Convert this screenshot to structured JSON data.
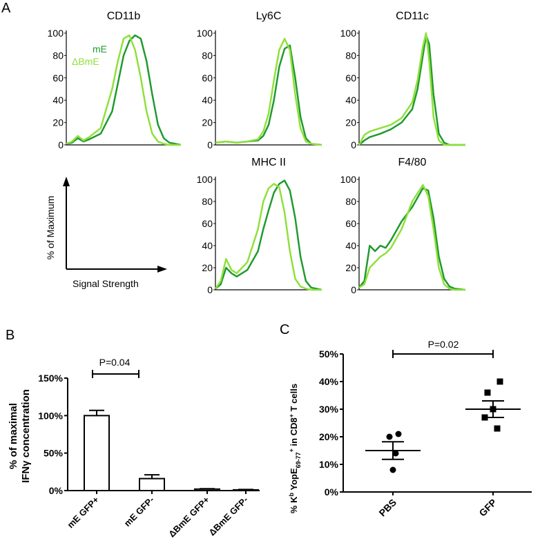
{
  "panel_labels": {
    "a": "A",
    "b": "B",
    "c": "C"
  },
  "colors": {
    "mE": "#1f9a2e",
    "dBmE": "#8fe03a"
  },
  "histograms": {
    "series_names": {
      "mE": "mE",
      "dBmE": "ΔBmE"
    },
    "y_ticks": [
      "0",
      "20",
      "40",
      "60",
      "80",
      "100"
    ],
    "axis_cartoon": {
      "ylabel": "% of Maximum",
      "xlabel": "Signal Strength"
    }
  },
  "chart_data": [
    {
      "type": "line",
      "panel": "A",
      "title": "CD11b",
      "legend": [
        "mE",
        "ΔBmE"
      ],
      "ylim": [
        0,
        100
      ],
      "series": [
        {
          "name": "mE",
          "x": [
            0,
            0.05,
            0.1,
            0.15,
            0.2,
            0.3,
            0.4,
            0.45,
            0.5,
            0.55,
            0.6,
            0.65,
            0.7,
            0.75,
            0.8,
            0.85,
            0.9,
            0.95,
            1.0
          ],
          "values": [
            1,
            2,
            6,
            3,
            5,
            10,
            30,
            55,
            80,
            93,
            98,
            95,
            75,
            45,
            18,
            6,
            2,
            1,
            0
          ]
        },
        {
          "name": "ΔBmE",
          "x": [
            0,
            0.05,
            0.1,
            0.15,
            0.2,
            0.3,
            0.4,
            0.45,
            0.5,
            0.55,
            0.6,
            0.65,
            0.7,
            0.75,
            0.8,
            0.85,
            0.9,
            0.95,
            1.0
          ],
          "values": [
            1,
            3,
            8,
            4,
            7,
            15,
            50,
            75,
            95,
            98,
            85,
            60,
            30,
            10,
            3,
            1,
            0,
            0,
            0
          ]
        }
      ]
    },
    {
      "type": "line",
      "panel": "A",
      "title": "Ly6C",
      "ylim": [
        0,
        100
      ],
      "series": [
        {
          "name": "mE",
          "x": [
            0,
            0.1,
            0.2,
            0.3,
            0.4,
            0.45,
            0.5,
            0.55,
            0.6,
            0.65,
            0.7,
            0.75,
            0.8,
            0.85,
            0.9,
            1.0
          ],
          "values": [
            2,
            3,
            2,
            3,
            4,
            8,
            18,
            40,
            70,
            86,
            89,
            60,
            25,
            6,
            1,
            0
          ]
        },
        {
          "name": "ΔBmE",
          "x": [
            0,
            0.1,
            0.2,
            0.3,
            0.4,
            0.45,
            0.5,
            0.55,
            0.6,
            0.65,
            0.7,
            0.75,
            0.8,
            0.85,
            0.9,
            1.0
          ],
          "values": [
            2,
            3,
            2,
            3,
            5,
            12,
            28,
            58,
            85,
            95,
            85,
            45,
            15,
            3,
            1,
            0
          ]
        }
      ]
    },
    {
      "type": "line",
      "panel": "A",
      "title": "CD11c",
      "ylim": [
        0,
        100
      ],
      "series": [
        {
          "name": "mE",
          "x": [
            0,
            0.05,
            0.1,
            0.2,
            0.3,
            0.4,
            0.5,
            0.55,
            0.6,
            0.63,
            0.66,
            0.7,
            0.75,
            0.8,
            0.85,
            1.0
          ],
          "values": [
            0,
            4,
            7,
            10,
            14,
            20,
            32,
            50,
            80,
            98,
            90,
            45,
            10,
            2,
            0,
            0
          ]
        },
        {
          "name": "ΔBmE",
          "x": [
            0,
            0.05,
            0.1,
            0.2,
            0.3,
            0.4,
            0.5,
            0.55,
            0.6,
            0.63,
            0.66,
            0.7,
            0.75,
            0.8,
            0.85,
            1.0
          ],
          "values": [
            0,
            9,
            12,
            15,
            18,
            24,
            38,
            58,
            88,
            100,
            75,
            25,
            4,
            0,
            0,
            0
          ]
        }
      ]
    },
    {
      "type": "line",
      "panel": "A",
      "title": "MHC II",
      "ylim": [
        0,
        100
      ],
      "series": [
        {
          "name": "mE",
          "x": [
            0,
            0.05,
            0.1,
            0.15,
            0.2,
            0.3,
            0.4,
            0.45,
            0.5,
            0.55,
            0.6,
            0.65,
            0.7,
            0.75,
            0.8,
            0.85,
            0.9,
            1.0
          ],
          "values": [
            1,
            5,
            20,
            15,
            12,
            18,
            35,
            55,
            72,
            88,
            96,
            99,
            90,
            65,
            30,
            8,
            2,
            0
          ]
        },
        {
          "name": "ΔBmE",
          "x": [
            0,
            0.05,
            0.1,
            0.15,
            0.2,
            0.3,
            0.4,
            0.45,
            0.5,
            0.55,
            0.6,
            0.65,
            0.7,
            0.75,
            0.8,
            0.85,
            0.9,
            1.0
          ],
          "values": [
            1,
            8,
            28,
            18,
            15,
            25,
            55,
            80,
            92,
            96,
            93,
            70,
            35,
            10,
            3,
            1,
            0,
            0
          ]
        }
      ]
    },
    {
      "type": "line",
      "panel": "A",
      "title": "F4/80",
      "ylim": [
        0,
        100
      ],
      "series": [
        {
          "name": "mE",
          "x": [
            0,
            0.05,
            0.1,
            0.15,
            0.2,
            0.25,
            0.3,
            0.4,
            0.5,
            0.6,
            0.65,
            0.7,
            0.75,
            0.8,
            0.85,
            0.9,
            1.0
          ],
          "values": [
            2,
            8,
            40,
            35,
            40,
            38,
            45,
            62,
            75,
            92,
            90,
            65,
            30,
            10,
            3,
            1,
            0
          ]
        },
        {
          "name": "ΔBmE",
          "x": [
            0,
            0.05,
            0.1,
            0.15,
            0.2,
            0.25,
            0.3,
            0.4,
            0.5,
            0.6,
            0.65,
            0.7,
            0.75,
            0.8,
            0.85,
            0.9,
            1.0
          ],
          "values": [
            2,
            5,
            20,
            25,
            30,
            33,
            38,
            55,
            80,
            95,
            85,
            55,
            20,
            5,
            1,
            0,
            0
          ]
        }
      ]
    },
    {
      "type": "bar",
      "panel": "B",
      "categories": [
        "mE GFP+",
        "mE GFP-",
        "ΔBmE GFP+",
        "ΔBmE GFP-"
      ],
      "values": [
        100,
        16,
        2,
        1
      ],
      "errors": [
        7,
        5,
        0.5,
        0.5
      ],
      "ylabel": [
        "% of maximal",
        "IFNγ concentration"
      ],
      "y_ticks": [
        "0%",
        "50%",
        "100%",
        "150%"
      ],
      "ylim": [
        0,
        150
      ],
      "annotation": "P=0.04"
    },
    {
      "type": "scatter",
      "panel": "C",
      "categories": [
        "PBS",
        "GFP"
      ],
      "points": {
        "PBS": [
          21,
          20,
          14,
          8
        ],
        "GFP": [
          40,
          36,
          30,
          27,
          23
        ]
      },
      "means": [
        15,
        30
      ],
      "sem": [
        3.2,
        3
      ],
      "ylabel": "% Kᵇ YopE69-77+ in CD8+ T cells",
      "y_ticks": [
        "0%",
        "10%",
        "20%",
        "30%",
        "40%",
        "50%"
      ],
      "ylim": [
        0,
        50
      ],
      "annotation": "P=0.02"
    }
  ]
}
